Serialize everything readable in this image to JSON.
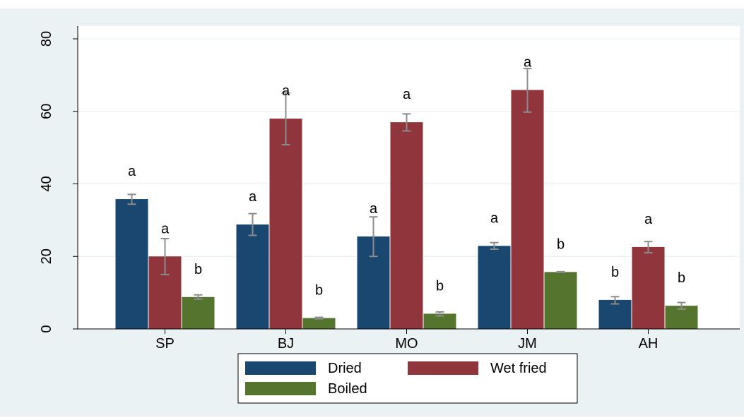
{
  "chart_data": {
    "type": "bar",
    "categories": [
      "SP",
      "BJ",
      "MO",
      "JM",
      "AH"
    ],
    "series": [
      {
        "name": "Dried",
        "color": "#1a476f",
        "values": [
          35.8,
          28.8,
          25.5,
          22.9,
          8.0
        ],
        "error_low": [
          34.4,
          25.8,
          20.0,
          22.0,
          6.9
        ],
        "error_high": [
          37.1,
          31.8,
          30.9,
          23.8,
          8.9
        ],
        "letters": [
          "a",
          "a",
          "a",
          "a",
          "b"
        ]
      },
      {
        "name": "Wet fried",
        "color": "#90353b",
        "values": [
          20.0,
          58.0,
          57.0,
          65.9,
          22.6
        ],
        "error_low": [
          15.0,
          50.8,
          54.6,
          59.8,
          21.0
        ],
        "error_high": [
          24.9,
          65.1,
          59.3,
          71.8,
          24.1
        ],
        "letters": [
          "a",
          "a",
          "a",
          "a",
          "a"
        ]
      },
      {
        "name": "Boiled",
        "color": "#55752f",
        "values": [
          8.8,
          3.0,
          4.2,
          15.7,
          6.4
        ],
        "error_low": [
          8.2,
          2.8,
          3.6,
          15.6,
          5.5
        ],
        "error_high": [
          9.4,
          3.2,
          4.7,
          15.8,
          7.3
        ],
        "letters": [
          "b",
          "b",
          "b",
          "b",
          "b"
        ]
      }
    ],
    "ylim": [
      0,
      80
    ],
    "yticks": [
      "0",
      "20",
      "40",
      "60",
      "80"
    ],
    "xlabel": "",
    "ylabel": "",
    "grid": true,
    "legend_position": "bottom"
  }
}
